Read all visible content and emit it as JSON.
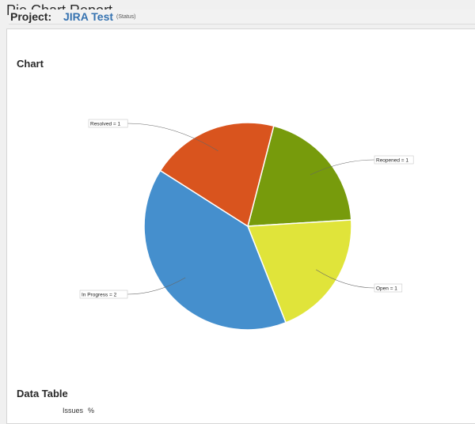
{
  "page": {
    "title": "Pie Chart Report"
  },
  "project": {
    "label": "Project:",
    "name": "JIRA Test",
    "statistic": "(Status)"
  },
  "sections": {
    "chart": "Chart",
    "data_table": "Data Table"
  },
  "table": {
    "columns": [
      "Issues",
      "%"
    ]
  },
  "chart_data": {
    "type": "pie",
    "slices": [
      {
        "name": "Reopened",
        "value": 1,
        "label": "Reopened = 1",
        "color": "#779b0c"
      },
      {
        "name": "Open",
        "value": 1,
        "label": "Open = 1",
        "color": "#e0e43a"
      },
      {
        "name": "In Progress",
        "value": 2,
        "label": "In Progress = 2",
        "color": "#458fcd"
      },
      {
        "name": "Resolved",
        "value": 1,
        "label": "Resolved = 1",
        "color": "#d9541e"
      }
    ]
  }
}
